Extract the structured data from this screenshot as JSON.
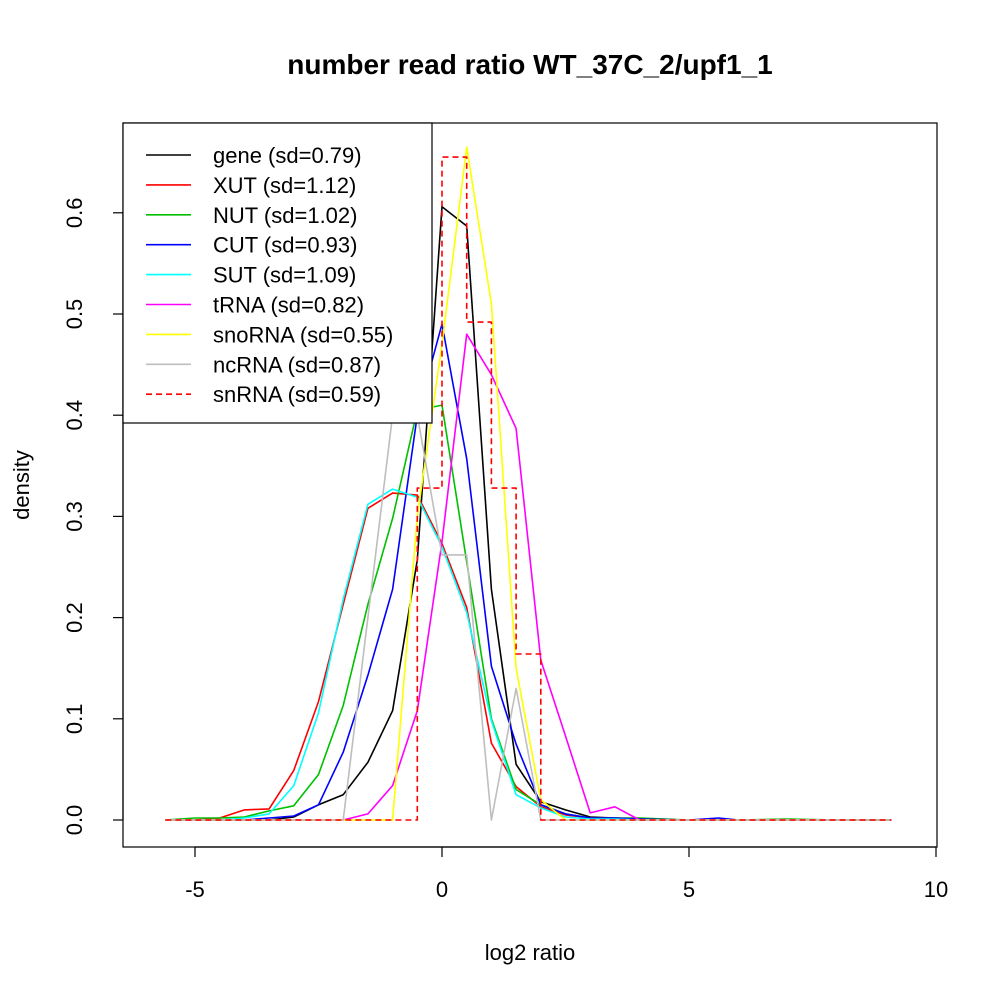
{
  "chart_data": {
    "type": "line",
    "title": "number read ratio WT_37C_2/upf1_1",
    "xlabel": "log2 ratio",
    "ylabel": "density",
    "xlim": [
      -6.2,
      10
    ],
    "ylim": [
      -0.027,
      0.69
    ],
    "xticks": [
      -5,
      0,
      5,
      10
    ],
    "yticks": [
      0.0,
      0.1,
      0.2,
      0.3,
      0.4,
      0.5,
      0.6
    ],
    "grid": false,
    "legend_position": "top-left",
    "series": [
      {
        "name": "gene (sd=0.79)",
        "color": "#000000",
        "dash": "solid",
        "x": [
          -5.6,
          -5.0,
          -4.5,
          -4.0,
          -3.5,
          -3.0,
          -2.5,
          -2.0,
          -1.5,
          -1.0,
          -0.5,
          0.0,
          0.5,
          1.0,
          1.5,
          2.0,
          2.5,
          3.0,
          3.5,
          4.0,
          5.0,
          6.0,
          7.0,
          8.0,
          9.1
        ],
        "y": [
          0,
          0,
          0,
          0,
          0,
          0.003,
          0.015,
          0.025,
          0.057,
          0.108,
          0.257,
          0.606,
          0.587,
          0.228,
          0.055,
          0.018,
          0.01,
          0.003,
          0.002,
          0.001,
          0,
          0,
          0,
          0,
          0
        ]
      },
      {
        "name": "XUT (sd=1.12)",
        "color": "#ff0000",
        "dash": "solid",
        "x": [
          -5.6,
          -5.0,
          -4.5,
          -4.0,
          -3.5,
          -3.0,
          -2.5,
          -2.0,
          -1.5,
          -1.0,
          -0.5,
          0.0,
          0.5,
          1.0,
          1.5,
          2.0,
          2.5,
          3.0,
          3.5,
          4.0,
          5.0,
          6.0,
          7.0,
          8.0,
          9.1
        ],
        "y": [
          0,
          0,
          0.002,
          0.01,
          0.011,
          0.049,
          0.117,
          0.213,
          0.308,
          0.323,
          0.321,
          0.273,
          0.21,
          0.076,
          0.033,
          0.013,
          0.005,
          0.002,
          0.001,
          0,
          0,
          0,
          0,
          0,
          0
        ]
      },
      {
        "name": "NUT (sd=1.02)",
        "color": "#00c000",
        "dash": "solid",
        "x": [
          -5.6,
          -5.0,
          -4.5,
          -4.0,
          -3.5,
          -3.0,
          -2.5,
          -2.0,
          -1.5,
          -1.0,
          -0.5,
          0.0,
          0.5,
          1.0,
          1.5,
          2.0,
          2.5,
          3.0,
          3.5,
          4.0,
          5.0,
          6.0,
          7.0,
          8.0,
          9.1
        ],
        "y": [
          0,
          0.002,
          0.002,
          0.003,
          0.009,
          0.014,
          0.045,
          0.113,
          0.213,
          0.298,
          0.405,
          0.41,
          0.255,
          0.1,
          0.03,
          0.015,
          0.006,
          0.002,
          0.002,
          0.002,
          0,
          0,
          0.001,
          0,
          0
        ]
      },
      {
        "name": "CUT (sd=0.93)",
        "color": "#0000ff",
        "dash": "solid",
        "x": [
          -5.6,
          -5.0,
          -4.5,
          -4.0,
          -3.5,
          -3.0,
          -2.5,
          -2.0,
          -1.5,
          -1.0,
          -0.5,
          0.0,
          0.5,
          1.0,
          1.5,
          2.0,
          2.5,
          3.0,
          3.5,
          4.0,
          5.0,
          5.6,
          6.0,
          7.0,
          8.0,
          9.1
        ],
        "y": [
          0,
          0,
          0,
          0,
          0.002,
          0.004,
          0.015,
          0.067,
          0.143,
          0.228,
          0.4,
          0.49,
          0.357,
          0.152,
          0.075,
          0.015,
          0.006,
          0.002,
          0.002,
          0.001,
          0,
          0.002,
          0,
          0,
          0,
          0
        ]
      },
      {
        "name": "SUT (sd=1.09)",
        "color": "#00ffff",
        "dash": "solid",
        "x": [
          -5.6,
          -5.0,
          -4.5,
          -4.0,
          -3.5,
          -3.0,
          -2.5,
          -2.0,
          -1.5,
          -1.0,
          -0.5,
          0.0,
          0.5,
          1.0,
          1.5,
          2.0,
          2.5,
          3.0,
          3.5,
          4.0,
          5.0,
          6.0,
          7.0,
          8.0,
          9.1
        ],
        "y": [
          0,
          0,
          0,
          0.002,
          0.006,
          0.034,
          0.106,
          0.218,
          0.312,
          0.327,
          0.319,
          0.27,
          0.205,
          0.098,
          0.025,
          0.012,
          0.003,
          0.001,
          0.001,
          0,
          0,
          0,
          0,
          0,
          0
        ]
      },
      {
        "name": "tRNA (sd=0.82)",
        "color": "#ff00ff",
        "dash": "solid",
        "x": [
          -5.6,
          -2.0,
          -1.5,
          -1.0,
          -0.5,
          0.0,
          0.5,
          1.0,
          1.5,
          2.0,
          2.5,
          3.0,
          3.5,
          4.0,
          5.0,
          6.0,
          7.0,
          8.0,
          9.1
        ],
        "y": [
          0,
          0,
          0.006,
          0.034,
          0.108,
          0.275,
          0.48,
          0.44,
          0.387,
          0.158,
          0.083,
          0.007,
          0.013,
          0,
          0,
          0,
          0,
          0,
          0
        ]
      },
      {
        "name": "snoRNA (sd=0.55)",
        "color": "#ffff00",
        "dash": "solid",
        "x": [
          -5.6,
          -1.0,
          -0.5,
          0.0,
          0.5,
          1.0,
          1.5,
          2.0,
          2.5,
          3.0,
          4.0,
          5.0,
          6.0,
          7.0,
          8.0,
          9.1
        ],
        "y": [
          0,
          0,
          0.3,
          0.47,
          0.665,
          0.51,
          0.15,
          0.02,
          0,
          0,
          0,
          0,
          0,
          0,
          0,
          0
        ]
      },
      {
        "name": "ncRNA (sd=0.87)",
        "color": "#bebebe",
        "dash": "solid",
        "x": [
          -5.6,
          -2.0,
          -1.5,
          -1.0,
          -0.5,
          0.0,
          0.5,
          1.0,
          1.5,
          2.0,
          2.5,
          3.0,
          4.0,
          5.0,
          6.0,
          7.0,
          8.0,
          9.1
        ],
        "y": [
          0,
          0,
          0.2,
          0.4,
          0.4,
          0.262,
          0.262,
          0,
          0.13,
          0,
          0,
          0,
          0,
          0,
          0,
          0,
          0,
          0
        ]
      },
      {
        "name": "snRNA (sd=0.59)",
        "color": "#ff0000",
        "dash": "dashed",
        "x": [
          -5.6,
          -0.5,
          -0.5,
          0.0,
          0.0,
          0.5,
          0.5,
          1.0,
          1.0,
          1.5,
          1.5,
          2.0,
          2.0,
          9.1
        ],
        "y": [
          0,
          0,
          0.328,
          0.328,
          0.655,
          0.655,
          0.492,
          0.492,
          0.328,
          0.328,
          0.164,
          0.164,
          0,
          0
        ]
      }
    ]
  }
}
